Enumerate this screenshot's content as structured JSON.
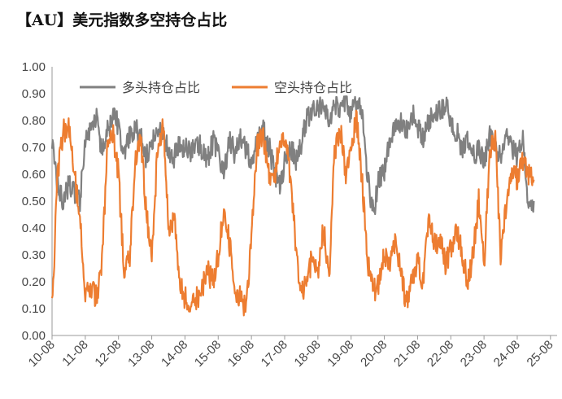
{
  "chart_data": {
    "type": "line",
    "title": "【AU】美元指数多空持仓占比",
    "xlabel": "",
    "ylabel": "",
    "ylim": [
      0,
      1
    ],
    "yticks": [
      "0.00",
      "0.10",
      "0.20",
      "0.30",
      "0.40",
      "0.50",
      "0.60",
      "0.70",
      "0.80",
      "0.90",
      "1.00"
    ],
    "xticks": [
      "10-08",
      "11-08",
      "12-08",
      "13-08",
      "14-08",
      "15-08",
      "16-08",
      "17-08",
      "18-08",
      "19-08",
      "20-08",
      "21-08",
      "22-08",
      "23-08",
      "24-08",
      "25-08"
    ],
    "legend_position": "top-left",
    "grid": false,
    "x": [
      2010.58,
      2010.75,
      2010.92,
      2011.08,
      2011.25,
      2011.42,
      2011.58,
      2011.75,
      2011.92,
      2012.08,
      2012.25,
      2012.42,
      2012.58,
      2012.75,
      2012.92,
      2013.08,
      2013.25,
      2013.42,
      2013.58,
      2013.75,
      2013.92,
      2014.08,
      2014.25,
      2014.42,
      2014.58,
      2014.75,
      2014.92,
      2015.08,
      2015.25,
      2015.42,
      2015.58,
      2015.75,
      2015.92,
      2016.08,
      2016.25,
      2016.42,
      2016.58,
      2016.75,
      2016.92,
      2017.08,
      2017.25,
      2017.42,
      2017.58,
      2017.75,
      2017.92,
      2018.08,
      2018.25,
      2018.42,
      2018.58,
      2018.75,
      2018.92,
      2019.08,
      2019.25,
      2019.42,
      2019.58,
      2019.75,
      2019.92,
      2020.08,
      2020.25,
      2020.42,
      2020.58,
      2020.75,
      2020.92,
      2021.08,
      2021.25,
      2021.42,
      2021.58,
      2021.75,
      2021.92,
      2022.08,
      2022.25,
      2022.42,
      2022.58,
      2022.75,
      2022.92,
      2023.08,
      2023.25,
      2023.42,
      2023.58,
      2023.75,
      2023.92,
      2024.08,
      2024.25,
      2024.42,
      2024.58,
      2024.75,
      2024.92,
      2025.08
    ],
    "series": [
      {
        "name": "多头持仓占比",
        "color": "#808080",
        "values": [
          0.74,
          0.56,
          0.5,
          0.56,
          0.54,
          0.5,
          0.72,
          0.78,
          0.8,
          0.68,
          0.76,
          0.82,
          0.78,
          0.66,
          0.74,
          0.78,
          0.74,
          0.66,
          0.72,
          0.78,
          0.74,
          0.7,
          0.66,
          0.72,
          0.7,
          0.68,
          0.72,
          0.7,
          0.66,
          0.72,
          0.68,
          0.62,
          0.72,
          0.68,
          0.74,
          0.7,
          0.64,
          0.72,
          0.76,
          0.72,
          0.62,
          0.56,
          0.64,
          0.7,
          0.66,
          0.72,
          0.8,
          0.82,
          0.86,
          0.84,
          0.8,
          0.86,
          0.84,
          0.88,
          0.82,
          0.86,
          0.84,
          0.58,
          0.46,
          0.58,
          0.62,
          0.72,
          0.78,
          0.8,
          0.76,
          0.82,
          0.78,
          0.72,
          0.8,
          0.82,
          0.84,
          0.86,
          0.8,
          0.76,
          0.7,
          0.72,
          0.66,
          0.7,
          0.64,
          0.74,
          0.68,
          0.66,
          0.74,
          0.7,
          0.66,
          0.74,
          0.46,
          0.5
        ]
      },
      {
        "name": "空头持仓占比",
        "color": "#ED7D31",
        "values": [
          0.1,
          0.6,
          0.76,
          0.78,
          0.6,
          0.44,
          0.14,
          0.18,
          0.14,
          0.28,
          0.7,
          0.74,
          0.6,
          0.22,
          0.3,
          0.64,
          0.72,
          0.46,
          0.28,
          0.68,
          0.8,
          0.4,
          0.44,
          0.2,
          0.14,
          0.1,
          0.14,
          0.16,
          0.24,
          0.2,
          0.3,
          0.48,
          0.34,
          0.18,
          0.14,
          0.1,
          0.36,
          0.7,
          0.76,
          0.62,
          0.56,
          0.72,
          0.74,
          0.6,
          0.32,
          0.16,
          0.2,
          0.3,
          0.24,
          0.4,
          0.2,
          0.68,
          0.78,
          0.6,
          0.72,
          0.8,
          0.56,
          0.28,
          0.16,
          0.2,
          0.3,
          0.26,
          0.36,
          0.22,
          0.12,
          0.22,
          0.28,
          0.2,
          0.46,
          0.34,
          0.36,
          0.26,
          0.32,
          0.4,
          0.3,
          0.2,
          0.3,
          0.5,
          0.26,
          0.68,
          0.74,
          0.3,
          0.48,
          0.62,
          0.58,
          0.66,
          0.6,
          0.58
        ]
      }
    ]
  }
}
